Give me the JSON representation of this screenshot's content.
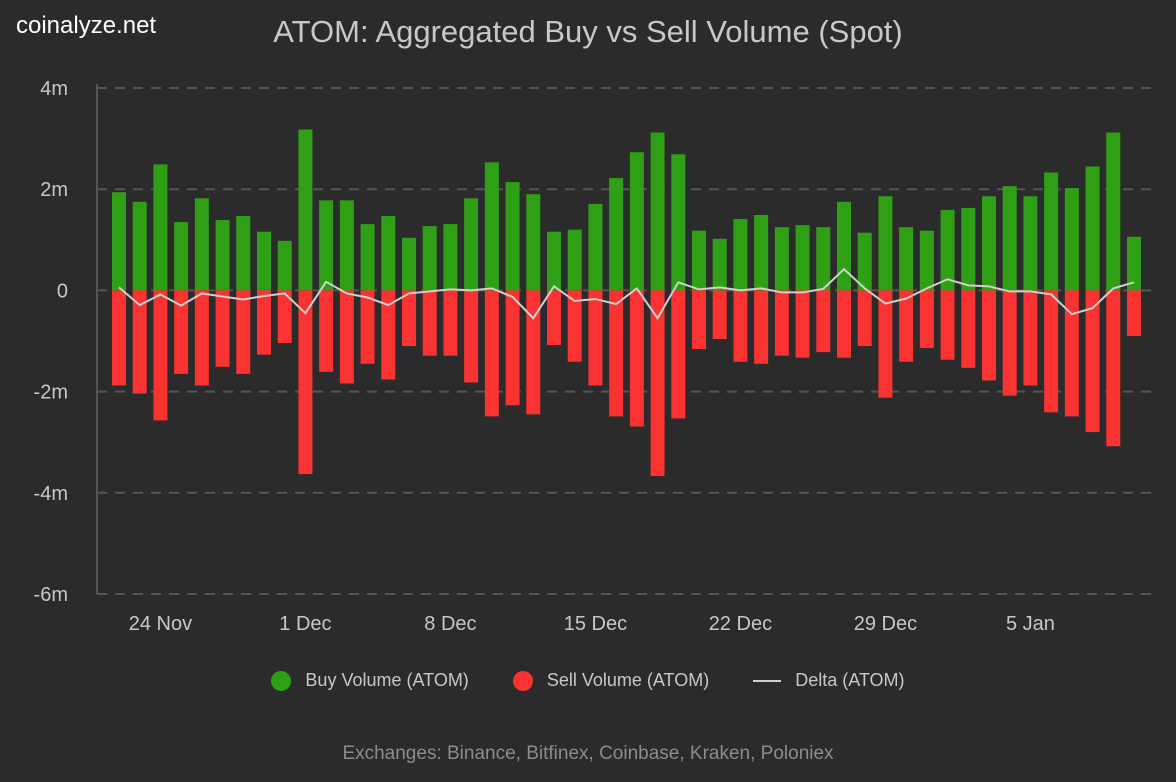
{
  "brand": "coinalyze.net",
  "footer": "Exchanges: Binance, Bitfinex, Coinbase, Kraken, Poloniex",
  "colors": {
    "buy": "#2fa015",
    "sell": "#f93232",
    "delta": "#d0d0d0",
    "background": "#2b2b2b",
    "grid": "#555555"
  },
  "chart_data": {
    "type": "bar",
    "title": "ATOM: Aggregated Buy vs Sell Volume (Spot)",
    "ylim": [
      -6000000,
      4000000
    ],
    "yticks": [
      {
        "v": 4000000,
        "label": "4m"
      },
      {
        "v": 2000000,
        "label": "2m"
      },
      {
        "v": 0,
        "label": "0"
      },
      {
        "v": -2000000,
        "label": "-2m"
      },
      {
        "v": -4000000,
        "label": "-4m"
      },
      {
        "v": -6000000,
        "label": "-6m"
      }
    ],
    "x_start": "22 Nov",
    "xticks": [
      {
        "index": 2,
        "label": "24 Nov"
      },
      {
        "index": 9,
        "label": "1 Dec"
      },
      {
        "index": 16,
        "label": "8 Dec"
      },
      {
        "index": 23,
        "label": "15 Dec"
      },
      {
        "index": 30,
        "label": "22 Dec"
      },
      {
        "index": 37,
        "label": "29 Dec"
      },
      {
        "index": 44,
        "label": "5 Jan"
      }
    ],
    "grid": true,
    "legend": "bottom",
    "series": [
      {
        "name": "Buy Volume (ATOM)",
        "type": "bar",
        "values": [
          1.94,
          1.75,
          2.49,
          1.35,
          1.82,
          1.39,
          1.47,
          1.16,
          0.98,
          3.18,
          1.78,
          1.78,
          1.31,
          1.47,
          1.04,
          1.27,
          1.31,
          1.82,
          2.53,
          2.14,
          1.9,
          1.16,
          1.2,
          1.71,
          2.22,
          2.73,
          3.12,
          2.69,
          1.18,
          1.02,
          1.41,
          1.49,
          1.25,
          1.29,
          1.25,
          1.75,
          1.14,
          1.86,
          1.25,
          1.18,
          1.59,
          1.63,
          1.86,
          2.06,
          1.86,
          2.33,
          2.02,
          2.45,
          3.12,
          1.06
        ]
      },
      {
        "name": "Sell Volume (ATOM)",
        "type": "bar",
        "values": [
          -1.88,
          -2.04,
          -2.57,
          -1.65,
          -1.88,
          -1.51,
          -1.65,
          -1.27,
          -1.04,
          -3.63,
          -1.61,
          -1.84,
          -1.45,
          -1.76,
          -1.1,
          -1.29,
          -1.29,
          -1.82,
          -2.49,
          -2.27,
          -2.45,
          -1.08,
          -1.41,
          -1.88,
          -2.49,
          -2.69,
          -3.67,
          -2.53,
          -1.16,
          -0.96,
          -1.41,
          -1.45,
          -1.29,
          -1.33,
          -1.22,
          -1.33,
          -1.1,
          -2.12,
          -1.41,
          -1.14,
          -1.37,
          -1.53,
          -1.78,
          -2.08,
          -1.88,
          -2.41,
          -2.49,
          -2.8,
          -3.08,
          -0.9
        ]
      },
      {
        "name": "Delta (ATOM)",
        "type": "line",
        "values": [
          0.06,
          -0.29,
          -0.08,
          -0.3,
          -0.06,
          -0.12,
          -0.18,
          -0.11,
          -0.06,
          -0.45,
          0.17,
          -0.06,
          -0.14,
          -0.29,
          -0.06,
          -0.02,
          0.02,
          0.0,
          0.04,
          -0.13,
          -0.55,
          0.08,
          -0.21,
          -0.17,
          -0.27,
          0.04,
          -0.55,
          0.16,
          0.02,
          0.06,
          0.0,
          0.04,
          -0.04,
          -0.04,
          0.03,
          0.42,
          0.04,
          -0.26,
          -0.16,
          0.04,
          0.22,
          0.1,
          0.08,
          -0.02,
          -0.02,
          -0.08,
          -0.47,
          -0.35,
          0.04,
          0.16
        ]
      }
    ],
    "value_unit": "m"
  }
}
